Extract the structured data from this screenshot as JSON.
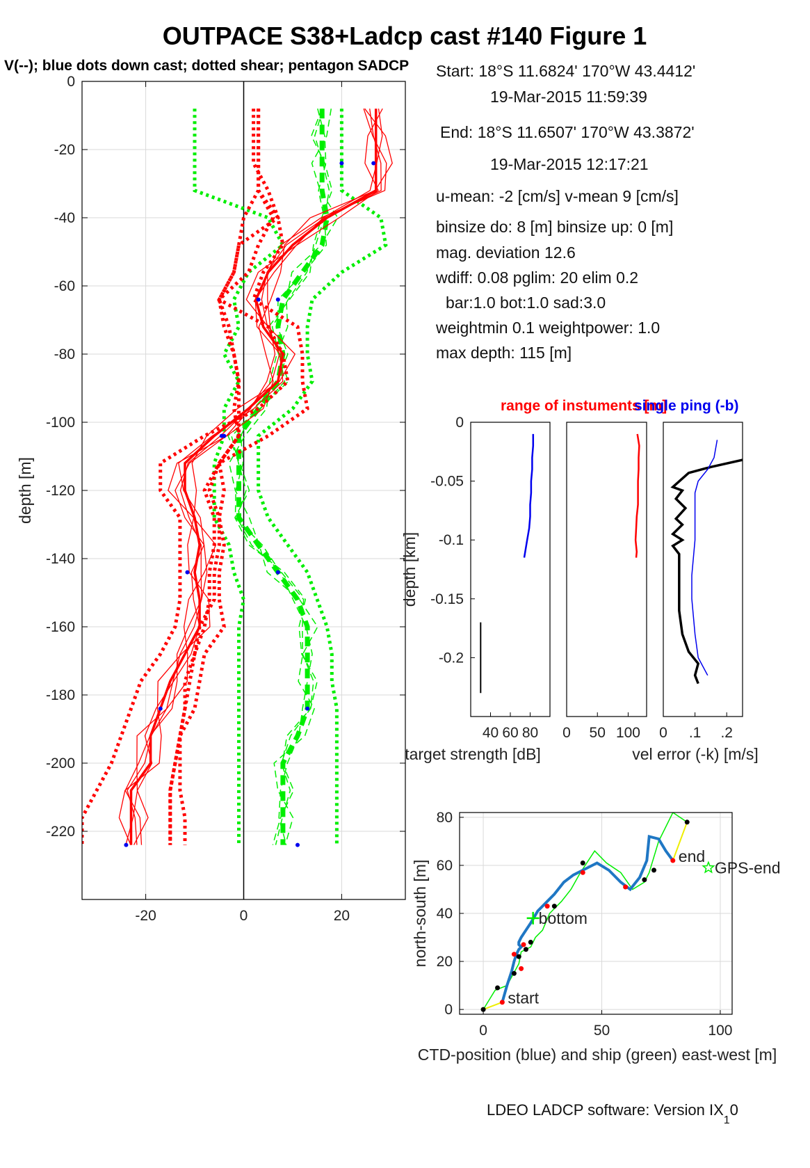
{
  "figure": {
    "title": "OUTPACE S38+Ladcp cast #140  Figure 1",
    "subtitle": "V(--); blue dots down cast; dotted shear; pentagon SADCP",
    "footer_main": "LDEO LADCP software: Version IX",
    "footer_sub": "1",
    "footer_tail": "0"
  },
  "info": {
    "lines": [
      "Start:  18°S 11.6824'      170°W 43.4412'",
      "19-Mar-2015 11:59:39",
      "End:   18°S 11.6507'      170°W 43.3872'",
      "19-Mar-2015 12:17:21",
      "u-mean:  -2 [cm/s]     v-mean   9 [cm/s]",
      "binsize do: 8 [m]  binsize up:  0 [m]",
      "mag. deviation 12.6",
      "wdiff: 0.08  pglim: 20  elim 0.2",
      "bar:1.0 bot:1.0 sad:3.0",
      "weightmin 0.1  weightpower: 1.0",
      "max depth: 115 [m]"
    ]
  },
  "colors": {
    "red": "#ff0000",
    "green": "#00ee00",
    "blue": "#0000ee",
    "profile_blue": "#1f77c4",
    "yellow": "#eeee00",
    "black": "#000000",
    "grid": "#d9d9d9"
  },
  "chart_data": [
    {
      "id": "velocity",
      "type": "line",
      "xlim": [
        -33,
        33
      ],
      "ylim": [
        -240,
        0
      ],
      "xticks": [
        -20,
        0,
        20
      ],
      "yticks": [
        0,
        -20,
        -40,
        -60,
        -80,
        -100,
        -120,
        -140,
        -160,
        -180,
        -200,
        -220
      ],
      "xlabel": "",
      "ylabel": "depth [m]",
      "grid": true,
      "depth": [
        -8,
        -16,
        -24,
        -32,
        -40,
        -48,
        -56,
        -64,
        -72,
        -80,
        -88,
        -96,
        -104,
        -112,
        -120,
        -128,
        -136,
        -144,
        -152,
        -160,
        -168,
        -176,
        -184,
        -192,
        -200,
        -208,
        -216,
        -224
      ],
      "u_main": [
        27,
        27,
        27,
        27,
        17,
        10,
        5,
        2.5,
        4,
        8,
        7,
        1,
        -6,
        -12,
        -12,
        -10,
        -9,
        -10,
        -9,
        -9,
        -12,
        -15,
        -17,
        -19,
        -19,
        -23,
        -23,
        -23
      ],
      "u_shear_hi": [
        3,
        3,
        3,
        3,
        6,
        3,
        1,
        -5,
        -4,
        -2,
        -1,
        -2,
        -1,
        -5,
        -7,
        -5,
        -5,
        -6,
        -6,
        -9,
        -10,
        -11,
        -12,
        -13,
        -14,
        -15,
        -15,
        -15
      ],
      "u_shear_lo": [
        3,
        3,
        3,
        3,
        0,
        -1,
        -2,
        -5,
        -3,
        -2,
        -1,
        -1,
        -1,
        -5,
        -8,
        -6,
        -6,
        -7,
        -7,
        -8,
        -10,
        -12,
        -12,
        -13,
        -14,
        -15,
        -15,
        -15
      ],
      "u_env_lo": [
        2,
        2,
        2,
        5,
        7,
        -1,
        -2,
        -5,
        5,
        8,
        9,
        3,
        -8,
        -17,
        -17,
        -13,
        -13,
        -13,
        -13,
        -14,
        -17,
        -21,
        -23,
        -25,
        -27,
        -30,
        -33,
        -33
      ],
      "u_env_hi": [
        3,
        3,
        3,
        3,
        7,
        8,
        4,
        2,
        11,
        12,
        12,
        13,
        5,
        -5,
        -4,
        -5,
        -4,
        -5,
        -5,
        -4,
        -8,
        -9,
        -10,
        -13,
        -13,
        -13,
        -12,
        -12
      ],
      "v_main": [
        16,
        16,
        16,
        16,
        17,
        16,
        12,
        8,
        7,
        8,
        7,
        3,
        -1,
        -1,
        -1,
        -1,
        3,
        7,
        11,
        13,
        13,
        13,
        13,
        11,
        8,
        8,
        8,
        8
      ],
      "v_env_lo": [
        -10,
        -10,
        -10,
        -10,
        5,
        8,
        1,
        -2,
        -1,
        -4,
        -1,
        -4,
        -4,
        -6,
        -6,
        -6,
        -3,
        -2,
        0,
        -1,
        -1,
        -1,
        -1,
        -1,
        -1,
        -1,
        -1,
        -1
      ],
      "v_env_hi": [
        20,
        20,
        20,
        20,
        28,
        29,
        20,
        14,
        13,
        13,
        14,
        10,
        3,
        3,
        3,
        5,
        9,
        13,
        15,
        17,
        18,
        18,
        19,
        19,
        19,
        19,
        19,
        19
      ],
      "blue_dots": [
        {
          "u": 26.5,
          "v": 20,
          "depth": -24
        },
        {
          "u": 3,
          "v": 7,
          "depth": -64
        },
        {
          "u": -4.5,
          "v": -4,
          "depth": -104
        },
        {
          "u": -11.5,
          "v": 7,
          "depth": -144
        },
        {
          "u": -17,
          "v": 13,
          "depth": -184
        },
        {
          "u": -24,
          "v": 11,
          "depth": -224
        }
      ]
    },
    {
      "id": "target-strength",
      "type": "line",
      "xlim": [
        20,
        100
      ],
      "ylim": [
        -0.25,
        0
      ],
      "xticks": [
        40,
        60,
        80
      ],
      "yticks": [
        0,
        -0.05,
        -0.1,
        -0.15,
        -0.2
      ],
      "xlabel": "target strength [dB]",
      "ylabel": "depth [km]",
      "title": "range of instuments [m]",
      "depth": [
        -0.01,
        -0.02,
        -0.03,
        -0.04,
        -0.05,
        -0.06,
        -0.07,
        -0.08,
        -0.09,
        -0.1,
        -0.11,
        -0.115
      ],
      "values": [
        83,
        83,
        82,
        82,
        81,
        81,
        80,
        80,
        79,
        77,
        75,
        74
      ],
      "aux_line": {
        "x": 30,
        "depth": [
          -0.17,
          -0.23
        ]
      }
    },
    {
      "id": "range",
      "type": "line",
      "xlim": [
        0,
        130
      ],
      "ylim": [
        -0.25,
        0
      ],
      "xticks": [
        0,
        50,
        100
      ],
      "depth": [
        -0.01,
        -0.02,
        -0.03,
        -0.04,
        -0.05,
        -0.06,
        -0.07,
        -0.08,
        -0.09,
        -0.1,
        -0.11,
        -0.115
      ],
      "values": [
        115,
        118,
        117,
        117,
        116,
        116,
        116,
        114,
        113,
        112,
        114,
        113
      ]
    },
    {
      "id": "velocity-error",
      "type": "line",
      "xlim": [
        0,
        0.25
      ],
      "ylim": [
        -0.25,
        0
      ],
      "xticks": [
        0,
        0.1,
        0.2
      ],
      "xlabel": "vel error (-k) [m/s]",
      "title": "single ping (-b)",
      "series": [
        {
          "color": "black",
          "depth": [
            -0.032,
            -0.038,
            -0.043,
            -0.055,
            -0.058,
            -0.065,
            -0.073,
            -0.082,
            -0.087,
            -0.095,
            -0.1,
            -0.105,
            -0.112,
            -0.125,
            -0.14,
            -0.16,
            -0.18,
            -0.195,
            -0.205,
            -0.215,
            -0.222
          ],
          "values": [
            0.25,
            0.15,
            0.08,
            0.03,
            0.06,
            0.04,
            0.07,
            0.04,
            0.06,
            0.03,
            0.06,
            0.03,
            0.05,
            0.05,
            0.05,
            0.05,
            0.06,
            0.08,
            0.11,
            0.1,
            0.11
          ]
        },
        {
          "color": "blue",
          "depth": [
            -0.015,
            -0.03,
            -0.04,
            -0.05,
            -0.06,
            -0.08,
            -0.1,
            -0.13,
            -0.15,
            -0.18,
            -0.2,
            -0.215
          ],
          "values": [
            0.17,
            0.16,
            0.14,
            0.11,
            0.1,
            0.1,
            0.1,
            0.09,
            0.09,
            0.1,
            0.11,
            0.14
          ]
        }
      ]
    },
    {
      "id": "position",
      "type": "line",
      "xlim": [
        -10,
        105
      ],
      "ylim": [
        -2,
        82
      ],
      "xticks": [
        0,
        50,
        100
      ],
      "yticks": [
        0,
        20,
        40,
        60,
        80
      ],
      "xlabel": "CTD-position (blue) and ship (green) east-west [m]",
      "ylabel": "north-south [m]",
      "grid": true,
      "ctd": {
        "x": [
          8,
          10,
          12,
          13,
          14,
          15,
          16,
          15,
          15,
          16,
          18,
          20,
          23,
          26,
          30,
          34,
          38,
          42,
          48,
          53,
          58,
          62,
          66,
          69,
          70,
          74,
          77,
          80
        ],
        "y": [
          3,
          10,
          16,
          20,
          23,
          25,
          26,
          27,
          28,
          30,
          33,
          36,
          41,
          44,
          48,
          53,
          56,
          58,
          61,
          58,
          53,
          50,
          55,
          62,
          72,
          71,
          66,
          62
        ]
      },
      "ship": {
        "x": [
          0,
          5,
          10,
          15,
          16,
          20,
          22,
          25,
          28,
          33,
          37,
          41,
          47,
          52,
          58,
          63,
          68,
          70,
          74,
          80,
          86
        ],
        "y": [
          0,
          8,
          10,
          19,
          24,
          26,
          30,
          33,
          40,
          45,
          50,
          57,
          66,
          61,
          57,
          50,
          53,
          57,
          70,
          82,
          78
        ]
      },
      "yellow": {
        "x": [
          0,
          8,
          80,
          86
        ],
        "y": [
          0,
          3,
          62,
          78
        ]
      },
      "red_dots": [
        {
          "x": 8,
          "y": 3
        },
        {
          "x": 16,
          "y": 17
        },
        {
          "x": 13,
          "y": 23
        },
        {
          "x": 17,
          "y": 27
        },
        {
          "x": 27,
          "y": 43
        },
        {
          "x": 42,
          "y": 57
        },
        {
          "x": 60,
          "y": 51
        },
        {
          "x": 80,
          "y": 62
        }
      ],
      "black_dots": [
        {
          "x": 0,
          "y": 0
        },
        {
          "x": 6,
          "y": 9
        },
        {
          "x": 13,
          "y": 15
        },
        {
          "x": 15,
          "y": 22
        },
        {
          "x": 18,
          "y": 25
        },
        {
          "x": 20,
          "y": 28
        },
        {
          "x": 30,
          "y": 43
        },
        {
          "x": 42,
          "y": 61
        },
        {
          "x": 68,
          "y": 54
        },
        {
          "x": 72,
          "y": 58
        },
        {
          "x": 86,
          "y": 78
        }
      ],
      "labels": {
        "start": "start",
        "bottom": "bottom",
        "end": "end",
        "gps_end": "GPS-end"
      },
      "label_points": {
        "start": {
          "x": 8,
          "y": 3
        },
        "bottom": {
          "x": 21,
          "y": 38
        },
        "end": {
          "x": 80,
          "y": 62
        },
        "gps_end": {
          "x": 95,
          "y": 59
        }
      }
    }
  ]
}
